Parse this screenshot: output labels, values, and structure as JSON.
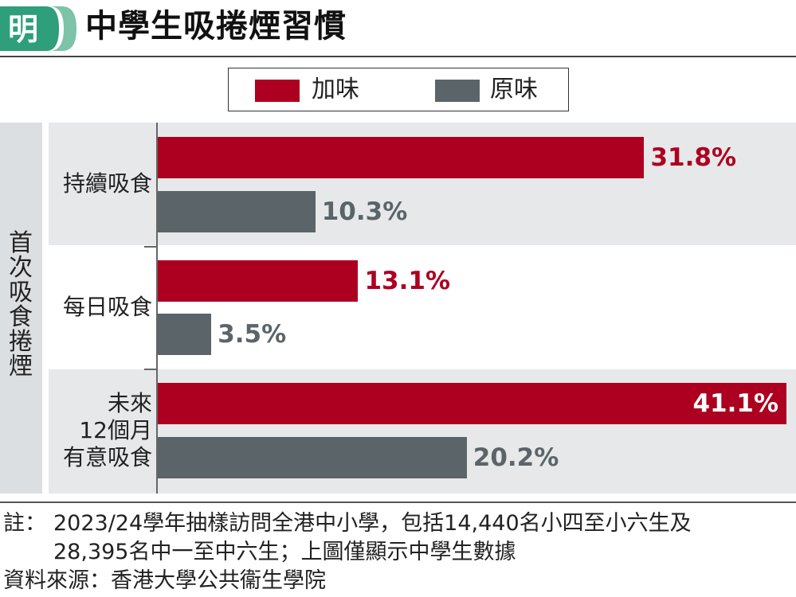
{
  "header": {
    "logo_char": "明",
    "title": "中學生吸捲煙習慣"
  },
  "colors": {
    "flavored": "#ad0020",
    "original": "#5b6468",
    "panel": "#e6e8ea",
    "logo_green": "#2f9e7a"
  },
  "chart_data": {
    "type": "bar",
    "orientation": "horizontal",
    "y_group_label": "首次吸食捲煙",
    "categories": [
      "持續吸食",
      "每日吸食",
      "未來12個月有意吸食"
    ],
    "category_display": [
      [
        "持續吸食"
      ],
      [
        "每日吸食"
      ],
      [
        "未來",
        "12個月",
        "有意吸食"
      ]
    ],
    "series": [
      {
        "name": "加味",
        "values": [
          31.8,
          13.1,
          41.1
        ],
        "labels": [
          "31.8%",
          "13.1%",
          "41.1%"
        ]
      },
      {
        "name": "原味",
        "values": [
          10.3,
          3.5,
          20.2
        ],
        "labels": [
          "10.3%",
          "3.5%",
          "20.2%"
        ]
      }
    ],
    "unit": "%",
    "xlim": [
      0,
      41.1
    ],
    "legend_position": "top-center",
    "grid": false
  },
  "footer": {
    "note_label": "註：",
    "note_line1": "2023/24學年抽樣訪問全港中小學，包括14,440名小四至小六生及",
    "note_line2": "28,395名中一至中六生；上圖僅顯示中學生數據",
    "source": "資料來源：香港大學公共衞生學院"
  }
}
